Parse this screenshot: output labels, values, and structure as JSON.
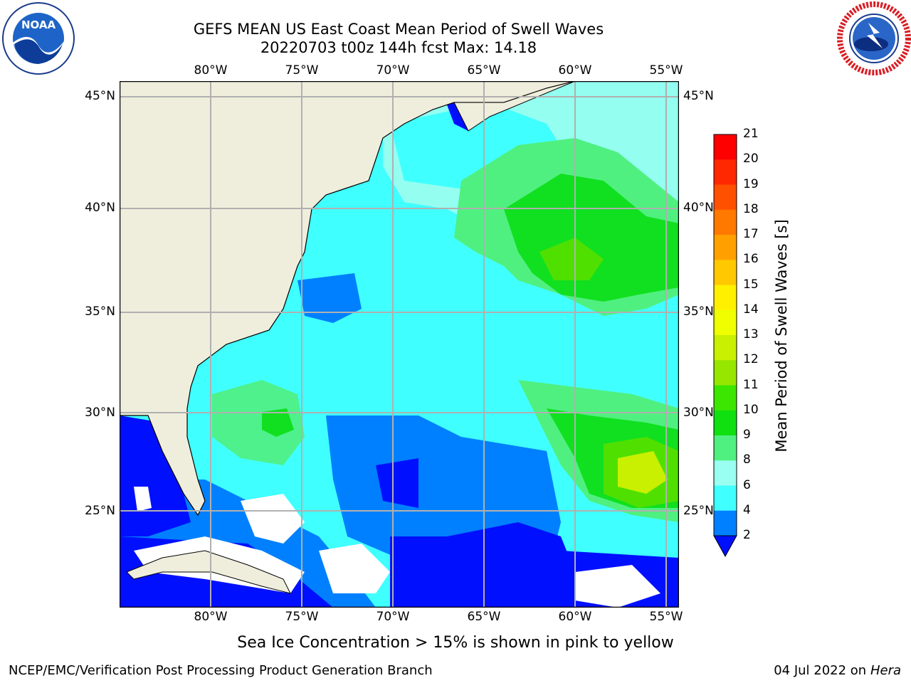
{
  "header": {
    "title_line1": "GEFS MEAN US East Coast Mean Period of Swell Waves",
    "title_line2": "20220703 t00z 144h fcst   Max: 14.18"
  },
  "logos": {
    "left": {
      "icon": "noaa-logo-icon",
      "text": "NOAA",
      "ring_text": "NATIONAL OCEANIC AND ATMOSPHERIC ADMINISTRATION · U.S. DEPARTMENT OF COMMERCE"
    },
    "right": {
      "icon": "nws-logo-icon",
      "ring_text": "NATIONAL WEATHER SERVICE"
    }
  },
  "map": {
    "lon_labels": [
      "80°W",
      "75°W",
      "70°W",
      "65°W",
      "60°W",
      "55°W"
    ],
    "lat_labels": [
      "45°N",
      "40°N",
      "35°N",
      "30°N",
      "25°N"
    ],
    "colors": {
      "land": "#efeedd",
      "grid": "#b0b0b0",
      "c2": "#0010ff",
      "c4": "#0080ff",
      "c6": "#00e5ff",
      "c8": "#40ffff",
      "c9": "#99fff0",
      "c10": "#50f080",
      "c11": "#10e020",
      "c12": "#50e000",
      "c13": "#c8f000"
    }
  },
  "colorbar": {
    "ticks": [
      "21",
      "20",
      "19",
      "18",
      "17",
      "16",
      "15",
      "14",
      "13",
      "12",
      "11",
      "10",
      "9",
      "8",
      "6",
      "4",
      "2"
    ],
    "label": "Mean Period of Swell Waves [s]",
    "colors": [
      "#ff0000",
      "#ff2800",
      "#ff5000",
      "#ff7800",
      "#ffa000",
      "#ffc800",
      "#fff000",
      "#f0ff00",
      "#c8f000",
      "#96e600",
      "#3ce600",
      "#10e010",
      "#50f080",
      "#99fff0",
      "#40ffff",
      "#00e5ff",
      "#0080ff"
    ],
    "extend_color": "#0010ff"
  },
  "caption": "Sea Ice Concentration > 15% is shown in pink to yellow",
  "footer": {
    "left": "NCEP/EMC/Verification Post Processing Product Generation Branch",
    "right_date": "04 Jul 2022 on ",
    "right_host": "Hera"
  }
}
